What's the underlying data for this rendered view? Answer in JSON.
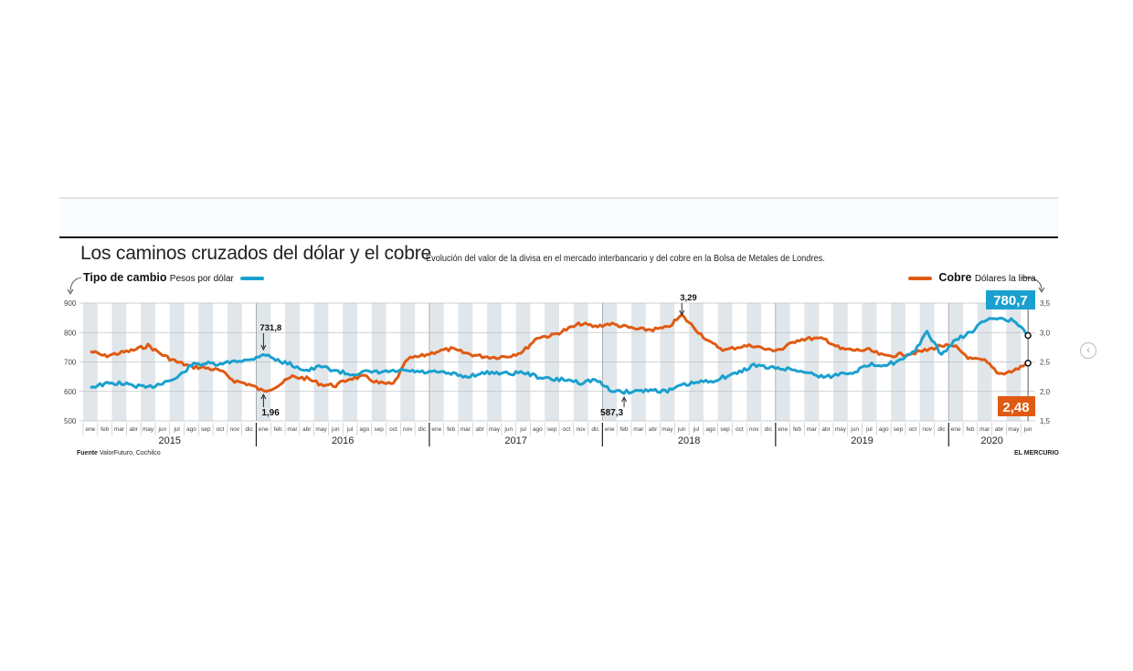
{
  "header": {
    "title": "Los caminos cruzados del dólar y el cobre",
    "subtitle": "Evolución del valor de la divisa en el mercado interbancario y del cobre en la Bolsa de Metales de Londres."
  },
  "legend": {
    "left": {
      "name": "Tipo de cambio",
      "unit": "Pesos por dólar"
    },
    "right": {
      "name": "Cobre",
      "unit": "Dólares la libra"
    }
  },
  "footer": {
    "source_label": "Fuente",
    "source_text": "ValorFuturo, Cochilco",
    "publisher": "EL MERCURIO"
  },
  "colors": {
    "dolar": "#1aa0cf",
    "cobre": "#e05a12",
    "stripe": "#d6dde3"
  },
  "chart_data": {
    "type": "line",
    "title": "Los caminos cruzados del dólar y el cobre",
    "x_start": "2015-01",
    "x_end": "2020-06",
    "month_labels": [
      "ene",
      "feb",
      "mar",
      "abr",
      "may",
      "jun",
      "jul",
      "ago",
      "sep",
      "oct",
      "nov",
      "dic"
    ],
    "years": [
      "2015",
      "2016",
      "2017",
      "2018",
      "2019",
      "2020"
    ],
    "y_left": {
      "label": "Pesos por dólar",
      "ticks": [
        "900",
        "800",
        "700",
        "600",
        "500"
      ],
      "range": [
        500,
        900
      ]
    },
    "y_right": {
      "label": "Dólares la libra",
      "ticks": [
        "3,5",
        "3,0",
        "2,5",
        "2,0",
        "1,5"
      ],
      "range": [
        1.5,
        3.5
      ]
    },
    "grid": true,
    "legend_placement": "top",
    "series": [
      {
        "name": "Tipo de cambio",
        "axis": "left",
        "values": [
          615,
          625,
          628,
          620,
          612,
          630,
          645,
          690,
          695,
          690,
          705,
          705,
          728,
          705,
          690,
          670,
          685,
          670,
          658,
          665,
          665,
          668,
          670,
          665,
          665,
          660,
          650,
          660,
          665,
          660,
          665,
          650,
          640,
          640,
          630,
          640,
          605,
          598,
          602,
          605,
          600,
          620,
          630,
          635,
          650,
          665,
          690,
          680,
          678,
          672,
          660,
          648,
          660,
          668,
          690,
          692,
          700,
          730,
          800,
          725,
          775,
          800,
          840,
          850,
          840,
          790
        ]
      },
      {
        "name": "Cobre",
        "axis": "right",
        "values": [
          2.68,
          2.6,
          2.65,
          2.7,
          2.78,
          2.62,
          2.5,
          2.42,
          2.4,
          2.35,
          2.18,
          2.12,
          2.0,
          2.1,
          2.25,
          2.22,
          2.12,
          2.1,
          2.22,
          2.25,
          2.14,
          2.12,
          2.55,
          2.6,
          2.68,
          2.72,
          2.65,
          2.6,
          2.58,
          2.6,
          2.68,
          2.92,
          2.95,
          3.05,
          3.15,
          3.1,
          3.15,
          3.1,
          3.05,
          3.05,
          3.08,
          3.29,
          3.05,
          2.82,
          2.7,
          2.76,
          2.78,
          2.7,
          2.72,
          2.88,
          2.9,
          2.88,
          2.72,
          2.7,
          2.7,
          2.6,
          2.62,
          2.65,
          2.7,
          2.78,
          2.75,
          2.55,
          2.52,
          2.3,
          2.35,
          2.48
        ]
      }
    ],
    "annotations": [
      {
        "text": "731,8",
        "series": "Tipo de cambio",
        "date": "2016-01"
      },
      {
        "text": "1,96",
        "series": "Cobre",
        "date": "2016-01"
      },
      {
        "text": "587,3",
        "series": "Tipo de cambio",
        "date": "2018-02"
      },
      {
        "text": "3,29",
        "series": "Cobre",
        "date": "2018-06"
      },
      {
        "text": "780,7",
        "series": "Tipo de cambio",
        "date": "2020-06",
        "boxed": true
      },
      {
        "text": "2,48",
        "series": "Cobre",
        "date": "2020-06",
        "boxed": true
      }
    ]
  }
}
